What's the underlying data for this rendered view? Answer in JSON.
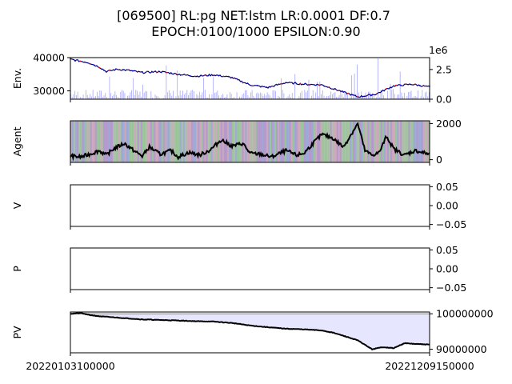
{
  "figure": {
    "title_line1": "[069500] RL:pg NET:lstm LR:0.0001 DF:0.7",
    "title_line2": "EPOCH:0100/1000 EPSILON:0.90",
    "x_start_label": "20220103100000",
    "x_end_label": "20221209150000"
  },
  "chart_data": [
    {
      "id": "env",
      "type": "line",
      "ylabel": "Env.",
      "yticks_left": [
        "40000",
        "30000"
      ],
      "ytick_values_left": [
        40000,
        30000
      ],
      "ylim_left": [
        27500,
        40000
      ],
      "yticks_right": [
        "2.5",
        "0.0"
      ],
      "ytick_values_right": [
        2.5,
        0.0
      ],
      "ylim_right": [
        0,
        3.5
      ],
      "right_offset_label": "1e6",
      "price_x": [
        0,
        0.05,
        0.08,
        0.1,
        0.13,
        0.16,
        0.2,
        0.25,
        0.3,
        0.35,
        0.4,
        0.45,
        0.5,
        0.55,
        0.6,
        0.65,
        0.7,
        0.75,
        0.8,
        0.85,
        0.9,
        0.95,
        1.0
      ],
      "price_y": [
        39500,
        38500,
        37200,
        35800,
        36500,
        36200,
        35500,
        35800,
        35000,
        34400,
        34800,
        34000,
        31800,
        31000,
        32500,
        32000,
        31800,
        30000,
        28200,
        29000,
        31500,
        32000,
        31200
      ],
      "price_color": "#000080",
      "volume_color": "#8080ff",
      "grid": false
    },
    {
      "id": "agent",
      "type": "area",
      "ylabel": "Agent",
      "yticks_right": [
        "2000",
        "0"
      ],
      "ytick_values_right": [
        2000,
        0
      ],
      "ylim": [
        -150,
        2150
      ],
      "x": [
        0,
        0.03,
        0.06,
        0.08,
        0.1,
        0.12,
        0.15,
        0.18,
        0.2,
        0.22,
        0.25,
        0.28,
        0.3,
        0.33,
        0.36,
        0.39,
        0.42,
        0.45,
        0.48,
        0.5,
        0.53,
        0.56,
        0.6,
        0.63,
        0.65,
        0.68,
        0.7,
        0.73,
        0.76,
        0.8,
        0.82,
        0.84,
        0.86,
        0.88,
        0.9,
        0.93,
        0.96,
        1.0
      ],
      "values": [
        200,
        150,
        350,
        500,
        250,
        600,
        900,
        450,
        200,
        700,
        300,
        500,
        150,
        400,
        250,
        550,
        1100,
        750,
        900,
        350,
        300,
        150,
        500,
        250,
        350,
        1000,
        1400,
        1200,
        700,
        2000,
        500,
        250,
        400,
        1300,
        600,
        250,
        500,
        300
      ],
      "band_colors": [
        "#a98bc6",
        "#8bbd8b",
        "#8e9ecf",
        "#c49bb0",
        "#9fb89a"
      ],
      "grid": false
    },
    {
      "id": "v",
      "type": "line",
      "ylabel": "V",
      "yticks_right": [
        "0.05",
        "0.00",
        "−0.05"
      ],
      "ytick_values_right": [
        0.05,
        0.0,
        -0.05
      ],
      "ylim": [
        -0.055,
        0.055
      ],
      "values": [],
      "grid": false
    },
    {
      "id": "p",
      "type": "line",
      "ylabel": "P",
      "yticks_right": [
        "0.05",
        "0.00",
        "−0.05"
      ],
      "ytick_values_right": [
        0.05,
        0.0,
        -0.05
      ],
      "ylim": [
        -0.055,
        0.055
      ],
      "values": [],
      "grid": false
    },
    {
      "id": "pv",
      "type": "area",
      "ylabel": "PV",
      "yticks_right": [
        "100000000",
        "90000000"
      ],
      "ytick_values_right": [
        100000000,
        90000000
      ],
      "ylim": [
        89000000,
        100500000
      ],
      "baseline": 100000000,
      "x": [
        0,
        0.03,
        0.05,
        0.08,
        0.12,
        0.16,
        0.2,
        0.3,
        0.35,
        0.4,
        0.45,
        0.5,
        0.55,
        0.6,
        0.65,
        0.7,
        0.73,
        0.76,
        0.8,
        0.84,
        0.87,
        0.9,
        0.93,
        0.96,
        1.0
      ],
      "values": [
        100000000,
        100200000,
        99700000,
        99300000,
        99000000,
        98700000,
        98400000,
        98100000,
        97900000,
        97800000,
        97400000,
        96700000,
        96200000,
        95800000,
        95600000,
        95300000,
        94700000,
        93800000,
        92500000,
        90000000,
        90600000,
        90300000,
        91700000,
        91500000,
        91300000
      ],
      "fill_color": "#e6e6ff",
      "line_color": "#000000",
      "grid": false
    }
  ]
}
